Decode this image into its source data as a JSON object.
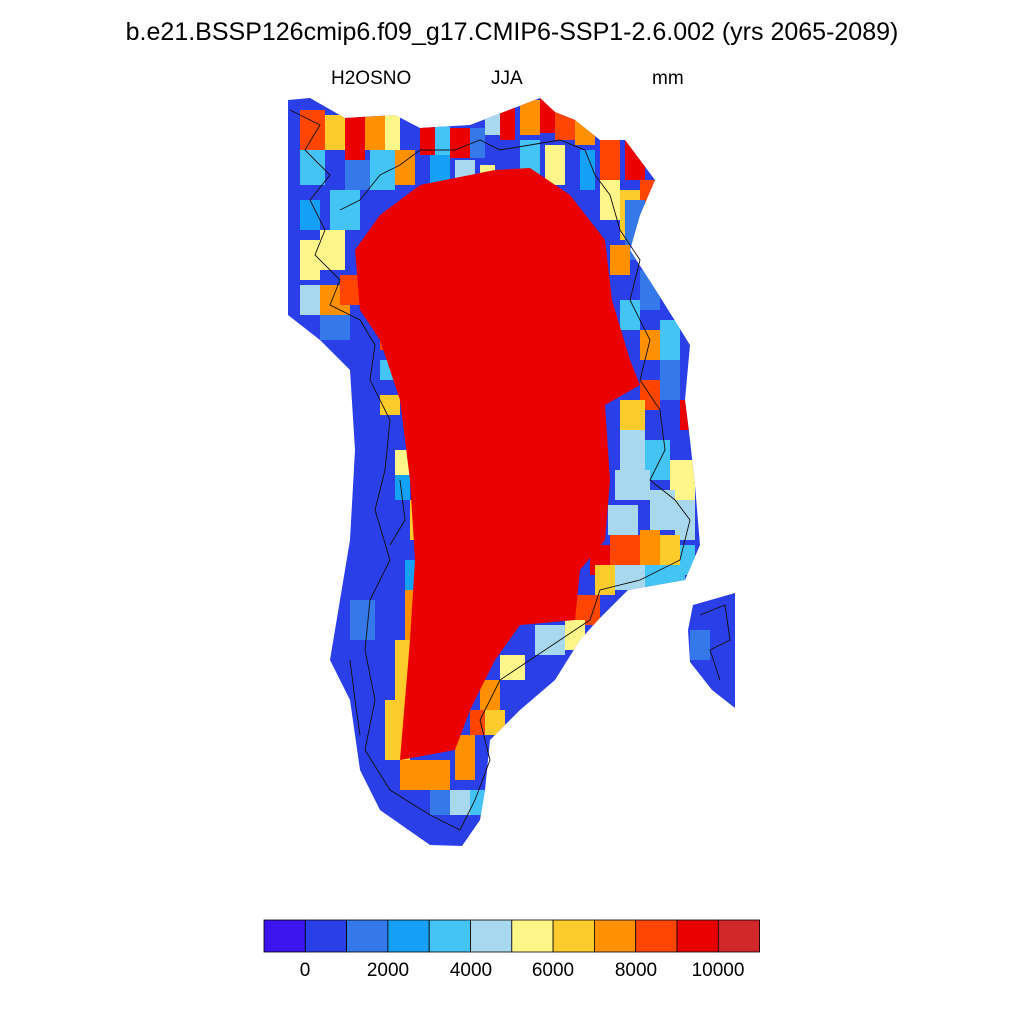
{
  "title": "b.e21.BSSP126cmip6.f09_g17.CMIP6-SSP1-2.6.002 (yrs 2065-2089)",
  "subtitle": {
    "variable": "H2OSNO",
    "season": "JJA",
    "units": "mm"
  },
  "colorbar": {
    "colors": [
      "#3b14f0",
      "#2a3fe8",
      "#3478ea",
      "#14a0f5",
      "#44c4f5",
      "#a8d8ee",
      "#fff68a",
      "#fecb2c",
      "#fe9001",
      "#fe4502",
      "#ea0000",
      "#d2272a"
    ],
    "tick_labels": [
      "0",
      "2000",
      "4000",
      "6000",
      "8000",
      "10000"
    ]
  },
  "map": {
    "region": "Greenland",
    "ice_sheet_value_class": "10000+",
    "coast_value_class": "0-2000"
  }
}
